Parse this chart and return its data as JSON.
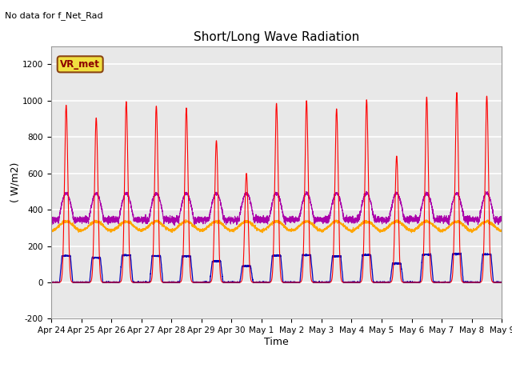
{
  "title": "Short/Long Wave Radiation",
  "xlabel": "Time",
  "ylabel": "( W/m2)",
  "ylim": [
    -200,
    1300
  ],
  "yticks": [
    -200,
    0,
    200,
    400,
    600,
    800,
    1000,
    1200
  ],
  "xlim": [
    0,
    15
  ],
  "xtick_labels": [
    "Apr 24",
    "Apr 25",
    "Apr 26",
    "Apr 27",
    "Apr 28",
    "Apr 29",
    "Apr 30",
    "May 1",
    "May 2",
    "May 3",
    "May 4",
    "May 5",
    "May 6",
    "May 7",
    "May 8",
    "May 9"
  ],
  "annotation_text": "No data for f_Net_Rad",
  "box_label": "VR_met",
  "bg_color": "#e8e8e8",
  "grid_color": "#ffffff",
  "sw_in_color": "#ff0000",
  "lw_in_color": "#ffa500",
  "sw_out_color": "#0000bb",
  "lw_out_color": "#aa00aa",
  "n_days": 15,
  "points_per_day": 288
}
